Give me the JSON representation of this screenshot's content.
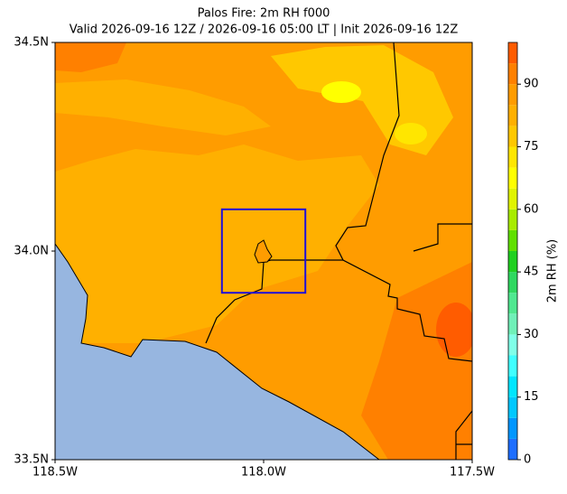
{
  "chart_data": {
    "type": "map",
    "title": "Palos Fire: 2m RH f000",
    "subtitle": "Valid 2026-09-16 12Z / 2026-09-16 05:00 LT | Init 2026-09-16 12Z",
    "xlim": [
      -118.5,
      -117.5
    ],
    "ylim": [
      33.5,
      34.5
    ],
    "xticks": [
      {
        "value": -118.5,
        "label": "118.5W"
      },
      {
        "value": -118.0,
        "label": "118.0W"
      },
      {
        "value": -117.5,
        "label": "117.5W"
      }
    ],
    "yticks": [
      {
        "value": 33.5,
        "label": "33.5N"
      },
      {
        "value": 34.0,
        "label": "34.0N"
      },
      {
        "value": 34.5,
        "label": "34.5N"
      }
    ],
    "box": {
      "lon": [
        -118.1,
        -117.9
      ],
      "lat": [
        33.9,
        34.1
      ],
      "color": "#1f10d8"
    },
    "colorbar": {
      "label": "2m RH (%)",
      "lim": [
        0,
        100
      ],
      "ticks": [
        0,
        15,
        30,
        45,
        60,
        75,
        90
      ],
      "levels": [
        0,
        5,
        10,
        15,
        20,
        25,
        30,
        35,
        40,
        45,
        50,
        55,
        60,
        65,
        70,
        75,
        80,
        85,
        90,
        95,
        100
      ],
      "colors": [
        "#1e6eff",
        "#0096ff",
        "#00c8ff",
        "#00e6ff",
        "#40ffff",
        "#80ffe8",
        "#70f0b8",
        "#50e890",
        "#30d860",
        "#20d020",
        "#60e000",
        "#a8ec00",
        "#e0f400",
        "#ffff00",
        "#ffe600",
        "#ffc800",
        "#ffb000",
        "#ff9c00",
        "#ff8000",
        "#ff5c00"
      ]
    }
  }
}
